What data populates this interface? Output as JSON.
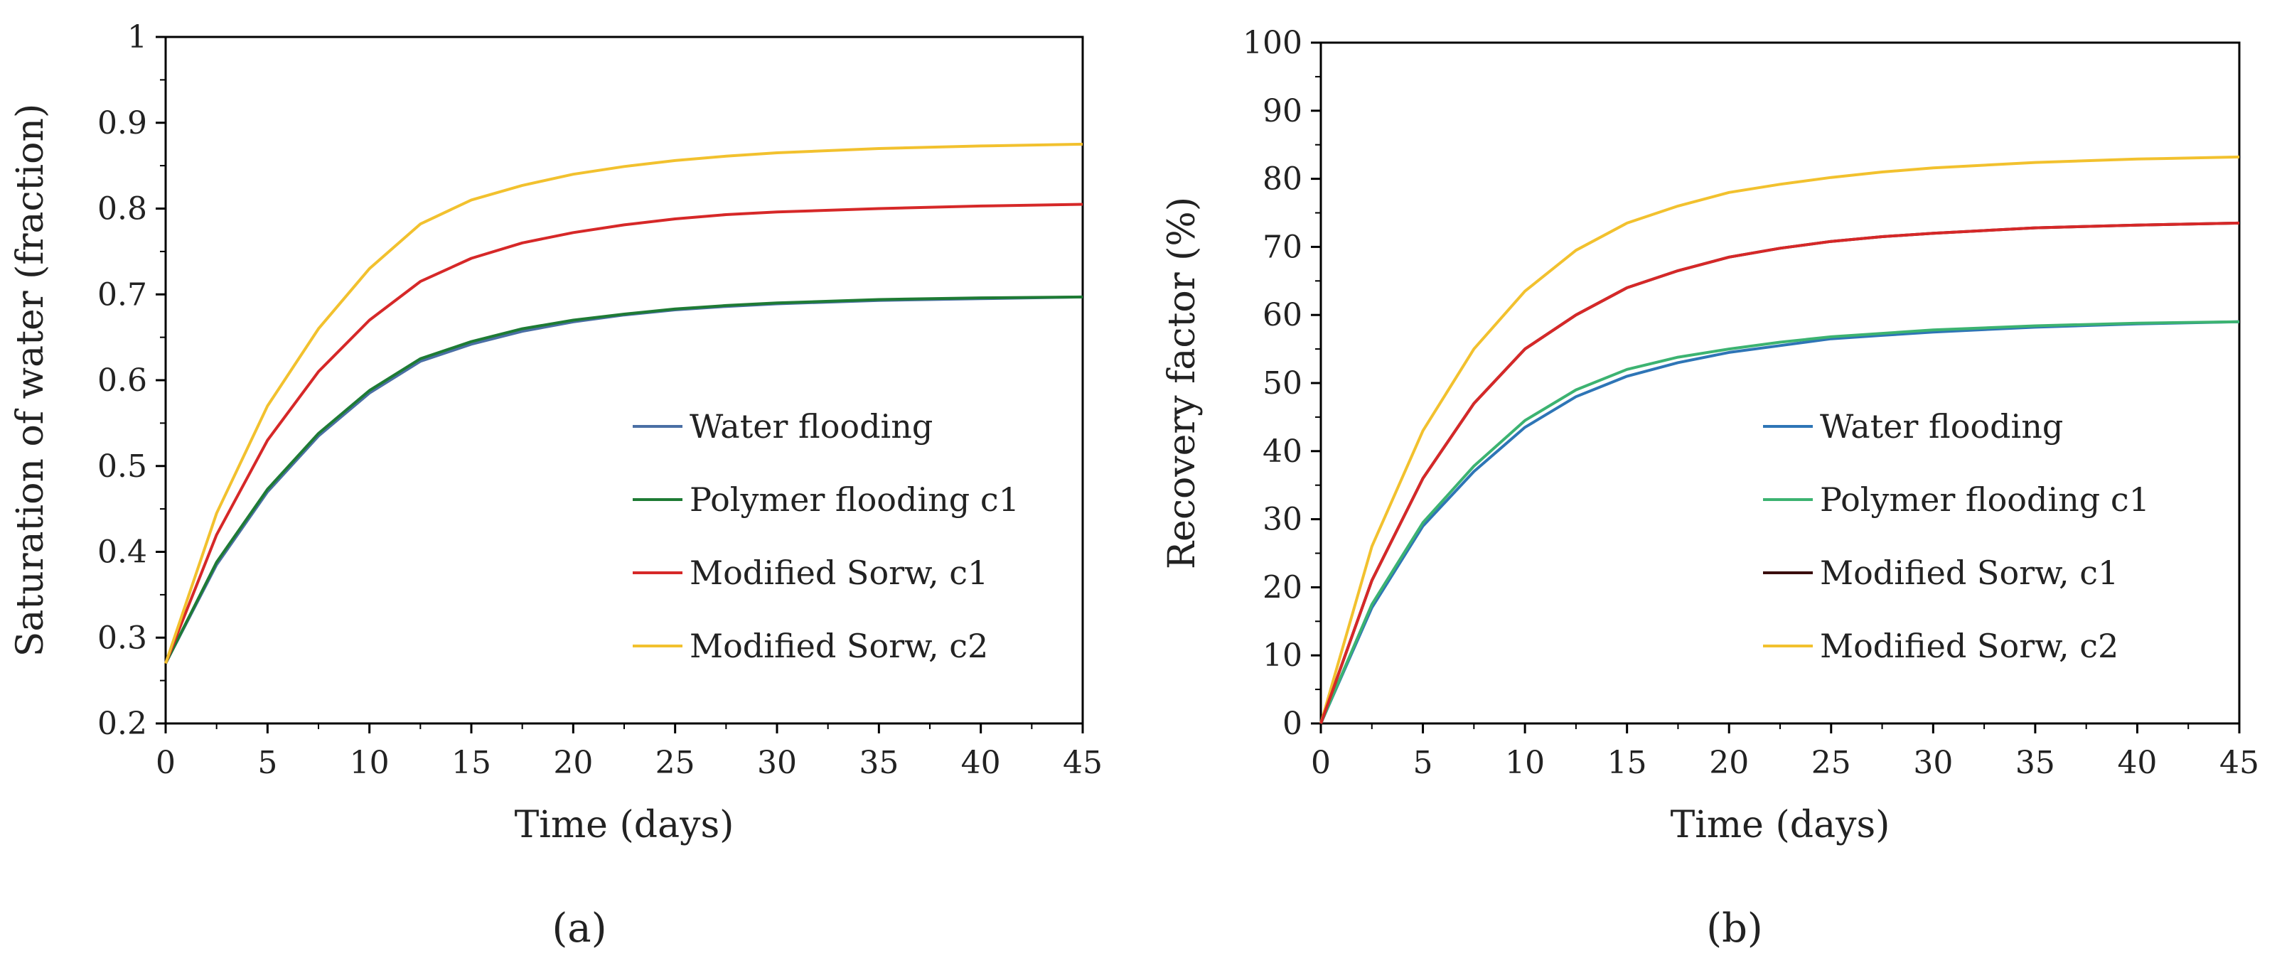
{
  "chart_data": [
    {
      "type": "line",
      "caption": "(a)",
      "xlabel": "Time (days)",
      "ylabel": "Saturation of water (fraction)",
      "xlim": [
        0,
        45
      ],
      "ylim": [
        0.2,
        1
      ],
      "xticks": [
        0,
        5,
        10,
        15,
        20,
        25,
        30,
        35,
        40,
        45
      ],
      "yticks": [
        0.2,
        0.3,
        0.4,
        0.5,
        0.6,
        0.7,
        0.8,
        0.9,
        1
      ],
      "ytick_labels": [
        "0.2",
        "0.3",
        "0.4",
        "0.5",
        "0.6",
        "0.7",
        "0.8",
        "0.9",
        "1"
      ],
      "legend_position": "right",
      "x": [
        0,
        2.5,
        5,
        7.5,
        10,
        12.5,
        15,
        17.5,
        20,
        22.5,
        25,
        27.5,
        30,
        35,
        40,
        45
      ],
      "series": [
        {
          "name": "Water flooding",
          "color": "#4a6fa5",
          "values": [
            0.27,
            0.385,
            0.47,
            0.535,
            0.585,
            0.622,
            0.642,
            0.657,
            0.668,
            0.676,
            0.682,
            0.686,
            0.689,
            0.693,
            0.695,
            0.697
          ]
        },
        {
          "name": "Polymer flooding c1",
          "color": "#1e7b34",
          "values": [
            0.27,
            0.388,
            0.473,
            0.538,
            0.588,
            0.625,
            0.645,
            0.66,
            0.67,
            0.677,
            0.683,
            0.687,
            0.69,
            0.694,
            0.696,
            0.697
          ]
        },
        {
          "name": "Modified Sorw, c1",
          "color": "#d62828",
          "values": [
            0.27,
            0.42,
            0.53,
            0.61,
            0.67,
            0.715,
            0.742,
            0.76,
            0.772,
            0.781,
            0.788,
            0.793,
            0.796,
            0.8,
            0.803,
            0.805
          ]
        },
        {
          "name": "Modified Sorw, c2",
          "color": "#f2c12e",
          "values": [
            0.27,
            0.445,
            0.57,
            0.66,
            0.73,
            0.782,
            0.81,
            0.827,
            0.84,
            0.849,
            0.856,
            0.861,
            0.865,
            0.87,
            0.873,
            0.875
          ]
        }
      ]
    },
    {
      "type": "line",
      "caption": "(b)",
      "xlabel": "Time (days)",
      "ylabel": "Recovery factor (%)",
      "xlim": [
        0,
        45
      ],
      "ylim": [
        0,
        100
      ],
      "xticks": [
        0,
        5,
        10,
        15,
        20,
        25,
        30,
        35,
        40,
        45
      ],
      "yticks": [
        0,
        10,
        20,
        30,
        40,
        50,
        60,
        70,
        80,
        90,
        100
      ],
      "ytick_labels": [
        "0",
        "10",
        "20",
        "30",
        "40",
        "50",
        "60",
        "70",
        "80",
        "90",
        "100"
      ],
      "legend_position": "right",
      "x": [
        0,
        2.5,
        5,
        7.5,
        10,
        12.5,
        15,
        17.5,
        20,
        22.5,
        25,
        27.5,
        30,
        35,
        40,
        45
      ],
      "series": [
        {
          "name": "Water flooding",
          "color": "#2e75b6",
          "values": [
            0,
            17,
            29,
            37,
            43.5,
            48,
            51,
            53,
            54.5,
            55.5,
            56.5,
            57,
            57.5,
            58.2,
            58.7,
            59
          ]
        },
        {
          "name": "Polymer flooding c1",
          "color": "#3cb371",
          "values": [
            0,
            17.5,
            29.5,
            37.8,
            44.5,
            49,
            52,
            53.8,
            55,
            56,
            56.8,
            57.3,
            57.8,
            58.4,
            58.8,
            59
          ]
        },
        {
          "name": "Modified Sorw, c1",
          "color": "#3a0d0d",
          "values": [
            0,
            21,
            36,
            47,
            55,
            60,
            64,
            66.5,
            68.5,
            69.8,
            70.8,
            71.5,
            72,
            72.8,
            73.2,
            73.5
          ]
        },
        {
          "name": "Modified Sorw, c2",
          "color": "#f2c12e",
          "values": [
            0,
            26,
            43,
            55,
            63.5,
            69.5,
            73.5,
            76,
            78,
            79.2,
            80.2,
            81,
            81.6,
            82.4,
            82.9,
            83.2
          ]
        },
        {
          "name": "Modified Sorw, c1 (curve)",
          "color": "#d62828",
          "legend": false,
          "values": [
            0,
            21,
            36,
            47,
            55,
            60,
            64,
            66.5,
            68.5,
            69.8,
            70.8,
            71.5,
            72,
            72.8,
            73.2,
            73.5
          ]
        }
      ]
    }
  ]
}
